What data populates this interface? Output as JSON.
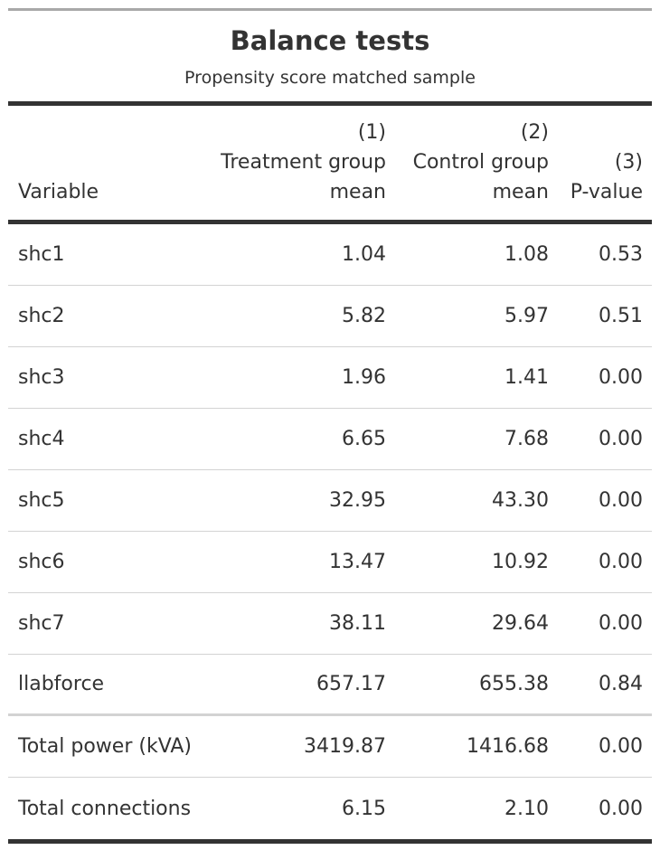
{
  "title": "Balance tests",
  "subtitle": "Propensity score matched sample",
  "header": {
    "variable": "Variable",
    "col1": {
      "num": "(1)",
      "line1": "Treatment group",
      "line2": "mean"
    },
    "col2": {
      "num": "(2)",
      "line1": "Control group",
      "line2": "mean"
    },
    "col3": {
      "num": "(3)",
      "line1": "P-value"
    }
  },
  "rows": [
    {
      "variable": "shc1",
      "treatment": "1.04",
      "control": "1.08",
      "pvalue": "0.53"
    },
    {
      "variable": "shc2",
      "treatment": "5.82",
      "control": "5.97",
      "pvalue": "0.51"
    },
    {
      "variable": "shc3",
      "treatment": "1.96",
      "control": "1.41",
      "pvalue": "0.00"
    },
    {
      "variable": "shc4",
      "treatment": "6.65",
      "control": "7.68",
      "pvalue": "0.00"
    },
    {
      "variable": "shc5",
      "treatment": "32.95",
      "control": "43.30",
      "pvalue": "0.00"
    },
    {
      "variable": "shc6",
      "treatment": "13.47",
      "control": "10.92",
      "pvalue": "0.00"
    },
    {
      "variable": "shc7",
      "treatment": "38.11",
      "control": "29.64",
      "pvalue": "0.00"
    },
    {
      "variable": "llabforce",
      "treatment": "657.17",
      "control": "655.38",
      "pvalue": "0.84"
    },
    {
      "variable": "Total power (kVA)",
      "treatment": "3419.87",
      "control": "1416.68",
      "pvalue": "0.00"
    },
    {
      "variable": "Total connections",
      "treatment": "6.15",
      "control": "2.10",
      "pvalue": "0.00"
    }
  ]
}
